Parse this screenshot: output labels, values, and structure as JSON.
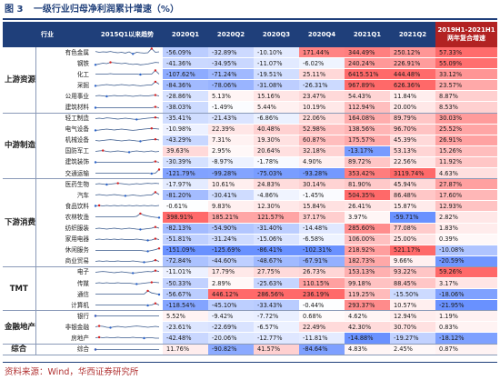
{
  "title": {
    "figure": "图 3",
    "text": "一级行业归母净利润累计增速（%）"
  },
  "source": "资料来源：Wind，华西证券研究所",
  "colors": {
    "header": "#1f3f7a",
    "header_last": "#b22222"
  },
  "headers": [
    "行业",
    "",
    "2015Q1以来趋势",
    "2020Q1",
    "2020Q2",
    "2020Q3",
    "2020Q4",
    "2021Q1",
    "2021Q2",
    "2019H1-2021H1 两年复合增速"
  ],
  "groups": [
    {
      "label": "上游资源",
      "rows": [
        {
          "name": "有色金属",
          "values": [
            "-56.09%",
            "-32.89%",
            "-10.10%",
            "171.44%",
            "344.49%",
            "250.12%",
            "57.33%"
          ],
          "trend": [
            0.6,
            0.5,
            0.55,
            0.52,
            0.6,
            0.5,
            0.45,
            0.5,
            0.4,
            0.55,
            0.3,
            0.5,
            0.45,
            0.4,
            0.45,
            0.95,
            0.5,
            0.55
          ]
        },
        {
          "name": "钢铁",
          "values": [
            "-41.36%",
            "-34.95%",
            "-11.07%",
            "-6.02%",
            "240.24%",
            "226.91%",
            "55.09%"
          ],
          "trend": [
            0.3,
            0.4,
            0.5,
            0.45,
            0.6,
            0.55,
            0.5,
            0.45,
            0.5,
            0.4,
            0.35,
            0.4,
            0.3,
            0.35,
            0.4,
            0.5,
            0.6,
            0.55
          ]
        },
        {
          "name": "化工",
          "values": [
            "-107.62%",
            "-71.24%",
            "-19.51%",
            "25.11%",
            "6415.51%",
            "444.48%",
            "33.12%"
          ],
          "trend": [
            0.5,
            0.5,
            0.5,
            0.5,
            0.55,
            0.5,
            0.5,
            0.5,
            0.5,
            0.5,
            0.5,
            0.5,
            0.45,
            0.5,
            0.5,
            0.5,
            0.95,
            0.5
          ]
        },
        {
          "name": "采掘",
          "values": [
            "-84.36%",
            "-78.06%",
            "-31.08%",
            "-26.31%",
            "967.89%",
            "626.36%",
            "23.57%"
          ],
          "trend": [
            0.4,
            0.45,
            0.5,
            0.55,
            0.5,
            0.45,
            0.5,
            0.55,
            0.5,
            0.45,
            0.5,
            0.45,
            0.4,
            0.45,
            0.5,
            0.5,
            0.9,
            0.6
          ]
        },
        {
          "name": "公用事业",
          "values": [
            "-28.86%",
            "5.13%",
            "15.16%",
            "23.47%",
            "54.43%",
            "11.84%",
            "8.87%"
          ],
          "trend": [
            0.5,
            0.55,
            0.5,
            0.45,
            0.5,
            0.55,
            0.5,
            0.5,
            0.55,
            0.5,
            0.45,
            0.5,
            0.55,
            0.5,
            0.5,
            0.55,
            0.6,
            0.5
          ]
        },
        {
          "name": "建筑材料",
          "values": [
            "-38.03%",
            "-1.49%",
            "5.44%",
            "10.19%",
            "112.94%",
            "20.00%",
            "8.53%"
          ],
          "trend": [
            0.5,
            0.5,
            0.5,
            0.5,
            0.5,
            0.5,
            0.5,
            0.5,
            0.5,
            0.5,
            0.5,
            0.5,
            0.5,
            0.5,
            0.5,
            0.5,
            0.6,
            0.5
          ]
        }
      ]
    },
    {
      "label": "中游制造",
      "rows": [
        {
          "name": "轻工制造",
          "values": [
            "-35.41%",
            "-21.43%",
            "-6.86%",
            "22.06%",
            "164.08%",
            "89.79%",
            "30.03%"
          ],
          "trend": [
            0.5,
            0.55,
            0.5,
            0.6,
            0.55,
            0.5,
            0.45,
            0.5,
            0.55,
            0.5,
            0.45,
            0.4,
            0.45,
            0.5,
            0.55,
            0.6,
            0.65,
            0.55
          ]
        },
        {
          "name": "电气设备",
          "values": [
            "-10.98%",
            "22.39%",
            "40.48%",
            "52.98%",
            "138.56%",
            "96.70%",
            "25.52%"
          ],
          "trend": [
            0.4,
            0.45,
            0.5,
            0.55,
            0.5,
            0.45,
            0.5,
            0.55,
            0.5,
            0.45,
            0.4,
            0.45,
            0.5,
            0.55,
            0.6,
            0.65,
            0.6,
            0.55
          ]
        },
        {
          "name": "机械设备",
          "values": [
            "-43.29%",
            "7.31%",
            "19.30%",
            "60.87%",
            "175.57%",
            "45.39%",
            "26.91%"
          ],
          "trend": [
            0.5,
            0.45,
            0.5,
            0.55,
            0.6,
            0.55,
            0.5,
            0.45,
            0.5,
            0.55,
            0.5,
            0.45,
            0.4,
            0.5,
            0.55,
            0.6,
            0.65,
            0.55
          ]
        },
        {
          "name": "国防军工",
          "values": [
            "39.63%",
            "2.95%",
            "20.64%",
            "32.18%",
            "-13.17%",
            "53.13%",
            "15.26%"
          ],
          "trend": [
            0.5,
            0.55,
            0.6,
            0.5,
            0.45,
            0.5,
            0.55,
            0.5,
            0.45,
            0.4,
            0.5,
            0.55,
            0.5,
            0.45,
            0.5,
            0.55,
            0.45,
            0.5
          ]
        },
        {
          "name": "建筑装饰",
          "values": [
            "-30.39%",
            "-8.97%",
            "-1.78%",
            "4.90%",
            "89.72%",
            "22.56%",
            "11.92%"
          ],
          "trend": [
            0.5,
            0.5,
            0.5,
            0.5,
            0.5,
            0.5,
            0.5,
            0.5,
            0.5,
            0.5,
            0.5,
            0.5,
            0.5,
            0.5,
            0.5,
            0.5,
            0.6,
            0.5
          ]
        },
        {
          "name": "交通运输",
          "values": [
            "-121.79%",
            "-99.28%",
            "-75.03%",
            "-93.28%",
            "353.42%",
            "3119.74%",
            "4.63%"
          ],
          "trend": [
            0.5,
            0.5,
            0.5,
            0.5,
            0.5,
            0.5,
            0.5,
            0.5,
            0.5,
            0.5,
            0.5,
            0.5,
            0.5,
            0.5,
            0.5,
            0.45,
            0.5,
            0.95
          ]
        }
      ]
    },
    {
      "label": "下游消费",
      "rows": [
        {
          "name": "医药生物",
          "values": [
            "-17.97%",
            "10.61%",
            "24.83%",
            "30.14%",
            "81.90%",
            "45.94%",
            "27.87%"
          ],
          "trend": [
            0.5,
            0.55,
            0.5,
            0.45,
            0.5,
            0.55,
            0.6,
            0.55,
            0.5,
            0.45,
            0.5,
            0.55,
            0.5,
            0.55,
            0.6,
            0.55,
            0.6,
            0.55
          ]
        },
        {
          "name": "汽车",
          "values": [
            "-81.20%",
            "-30.41%",
            "-4.86%",
            "-1.45%",
            "504.35%",
            "86.48%",
            "17.60%"
          ],
          "trend": [
            0.5,
            0.55,
            0.5,
            0.45,
            0.5,
            0.55,
            0.5,
            0.45,
            0.4,
            0.45,
            0.5,
            0.45,
            0.4,
            0.45,
            0.5,
            0.5,
            0.85,
            0.55
          ]
        },
        {
          "name": "食品饮料",
          "values": [
            "-0.61%",
            "9.83%",
            "12.30%",
            "15.84%",
            "26.41%",
            "15.87%",
            "12.93%"
          ],
          "trend": [
            0.5,
            0.55,
            0.5,
            0.55,
            0.5,
            0.55,
            0.5,
            0.55,
            0.5,
            0.55,
            0.5,
            0.55,
            0.5,
            0.55,
            0.5,
            0.55,
            0.5,
            0.55
          ]
        },
        {
          "name": "农林牧渔",
          "values": [
            "398.91%",
            "185.21%",
            "121.57%",
            "37.17%",
            "3.97%",
            "-59.71%",
            "2.82%"
          ],
          "trend": [
            0.5,
            0.5,
            0.5,
            0.5,
            0.5,
            0.5,
            0.5,
            0.5,
            0.5,
            0.5,
            0.5,
            0.55,
            0.9,
            0.7,
            0.6,
            0.5,
            0.45,
            0.4
          ]
        },
        {
          "name": "纺织服装",
          "values": [
            "-82.13%",
            "-54.90%",
            "-31.40%",
            "-14.48%",
            "285.60%",
            "77.08%",
            "1.83%"
          ],
          "trend": [
            0.5,
            0.55,
            0.5,
            0.45,
            0.5,
            0.55,
            0.5,
            0.45,
            0.5,
            0.55,
            0.5,
            0.45,
            0.4,
            0.45,
            0.5,
            0.55,
            0.7,
            0.55
          ]
        },
        {
          "name": "家用电器",
          "values": [
            "-51.81%",
            "-31.24%",
            "-15.06%",
            "-6.58%",
            "106.00%",
            "25.00%",
            "0.39%"
          ],
          "trend": [
            0.5,
            0.55,
            0.5,
            0.55,
            0.5,
            0.55,
            0.5,
            0.55,
            0.5,
            0.5,
            0.5,
            0.55,
            0.5,
            0.45,
            0.4,
            0.45,
            0.6,
            0.5
          ]
        },
        {
          "name": "休闲服务",
          "values": [
            "-151.09%",
            "-125.69%",
            "-86.41%",
            "-102.31%",
            "218.92%",
            "521.17%",
            "-10.08%"
          ],
          "trend": [
            0.5,
            0.5,
            0.5,
            0.5,
            0.5,
            0.5,
            0.5,
            0.5,
            0.5,
            0.5,
            0.5,
            0.5,
            0.5,
            0.45,
            0.4,
            0.5,
            0.6,
            0.75
          ]
        },
        {
          "name": "商业贸易",
          "values": [
            "-72.84%",
            "-44.60%",
            "-48.67%",
            "-67.91%",
            "182.73%",
            "9.66%",
            "-20.59%"
          ],
          "trend": [
            0.5,
            0.55,
            0.5,
            0.55,
            0.5,
            0.5,
            0.55,
            0.5,
            0.5,
            0.5,
            0.55,
            0.5,
            0.45,
            0.4,
            0.45,
            0.5,
            0.65,
            0.5
          ]
        }
      ]
    },
    {
      "label": "TMT",
      "rows": [
        {
          "name": "电子",
          "values": [
            "-11.01%",
            "17.79%",
            "27.75%",
            "26.73%",
            "153.13%",
            "93.22%",
            "59.26%"
          ],
          "trend": [
            0.5,
            0.55,
            0.6,
            0.55,
            0.5,
            0.45,
            0.5,
            0.55,
            0.5,
            0.45,
            0.4,
            0.45,
            0.5,
            0.55,
            0.6,
            0.55,
            0.7,
            0.6
          ]
        },
        {
          "name": "传媒",
          "values": [
            "-50.33%",
            "2.89%",
            "-25.63%",
            "110.15%",
            "99.18%",
            "88.45%",
            "3.17%"
          ],
          "trend": [
            0.5,
            0.55,
            0.5,
            0.55,
            0.5,
            0.5,
            0.55,
            0.5,
            0.5,
            0.5,
            0.45,
            0.4,
            0.45,
            0.5,
            0.55,
            0.6,
            0.6,
            0.55
          ]
        },
        {
          "name": "通信",
          "values": [
            "-56.67%",
            "446.12%",
            "286.56%",
            "236.19%",
            "119.25%",
            "-15.50%",
            "-18.06%"
          ],
          "trend": [
            0.5,
            0.5,
            0.5,
            0.5,
            0.5,
            0.5,
            0.5,
            0.5,
            0.5,
            0.5,
            0.5,
            0.5,
            0.5,
            0.5,
            0.9,
            0.65,
            0.55,
            0.45
          ]
        },
        {
          "name": "计算机",
          "values": [
            "-118.54%",
            "-45.10%",
            "-33.43%",
            "-0.44%",
            "293.37%",
            "10.57%",
            "-21.95%"
          ],
          "trend": [
            0.5,
            0.5,
            0.5,
            0.5,
            0.5,
            0.5,
            0.5,
            0.5,
            0.5,
            0.5,
            0.5,
            0.5,
            0.5,
            0.5,
            0.45,
            0.5,
            0.7,
            0.5
          ]
        }
      ]
    },
    {
      "label": "金融地产",
      "rows": [
        {
          "name": "银行",
          "values": [
            "5.52%",
            "-9.42%",
            "-7.72%",
            "0.68%",
            "4.62%",
            "12.94%",
            "1.19%"
          ],
          "trend": [
            0.5,
            0.5,
            0.5,
            0.5,
            0.5,
            0.5,
            0.5,
            0.5,
            0.5,
            0.5,
            0.5,
            0.5,
            0.5,
            0.5,
            0.5,
            0.5,
            0.5,
            0.5
          ]
        },
        {
          "name": "非银金融",
          "values": [
            "-23.61%",
            "-22.69%",
            "-6.57%",
            "22.49%",
            "42.30%",
            "30.70%",
            "0.83%"
          ],
          "trend": [
            0.5,
            0.6,
            0.55,
            0.45,
            0.4,
            0.5,
            0.55,
            0.5,
            0.45,
            0.5,
            0.55,
            0.6,
            0.55,
            0.5,
            0.45,
            0.5,
            0.55,
            0.5
          ]
        },
        {
          "name": "房地产",
          "values": [
            "-42.48%",
            "-20.06%",
            "-12.77%",
            "-11.81%",
            "-14.88%",
            "-19.27%",
            "-18.12%"
          ],
          "trend": [
            0.5,
            0.55,
            0.5,
            0.55,
            0.5,
            0.5,
            0.55,
            0.5,
            0.5,
            0.5,
            0.55,
            0.5,
            0.5,
            0.45,
            0.5,
            0.5,
            0.45,
            0.45
          ]
        }
      ]
    },
    {
      "label": "综合",
      "rows": [
        {
          "name": "综合",
          "values": [
            "11.76%",
            "-90.82%",
            "41.57%",
            "-84.64%",
            "4.83%",
            "2.45%",
            "0.87%"
          ],
          "trend": [
            0.5,
            0.5,
            0.5,
            0.5,
            0.5,
            0.5,
            0.5,
            0.5,
            0.5,
            0.5,
            0.5,
            0.5,
            0.5,
            0.5,
            0.5,
            0.5,
            0.5,
            0.5
          ]
        }
      ]
    }
  ]
}
